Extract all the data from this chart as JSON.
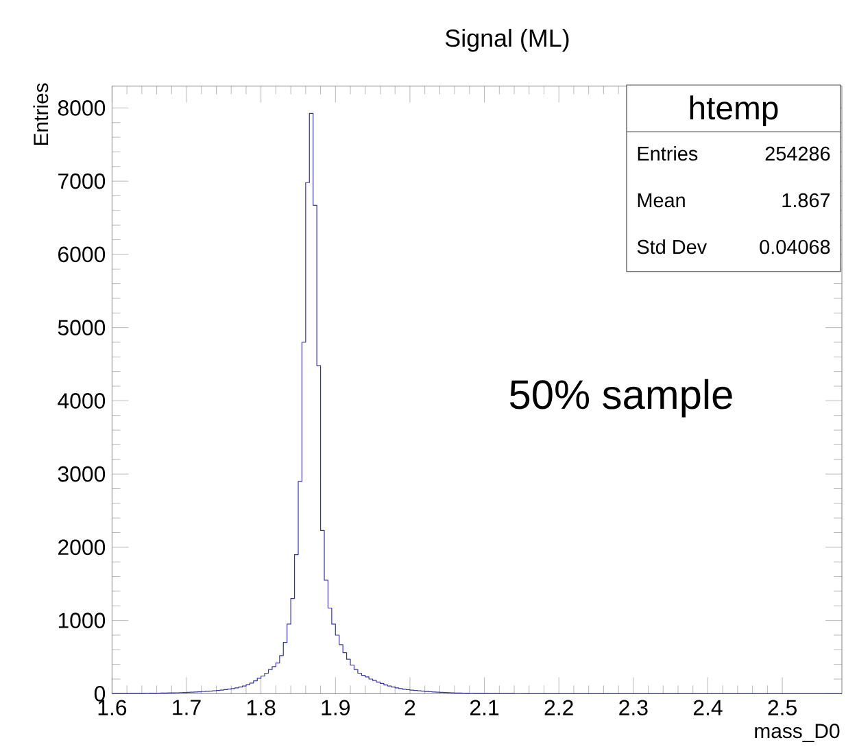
{
  "chart_data": {
    "type": "histogram",
    "title": "Signal (ML)",
    "xlabel": "mass_D0",
    "ylabel": "Entries",
    "color": "#35359c",
    "bins": [
      1.6,
      1.605,
      1.61,
      1.615,
      1.62,
      1.625,
      1.63,
      1.635,
      1.64,
      1.645,
      1.65,
      1.655,
      1.66,
      1.665,
      1.67,
      1.675,
      1.68,
      1.685,
      1.69,
      1.695,
      1.7,
      1.705,
      1.71,
      1.715,
      1.72,
      1.725,
      1.73,
      1.735,
      1.74,
      1.745,
      1.75,
      1.755,
      1.76,
      1.765,
      1.77,
      1.775,
      1.78,
      1.785,
      1.79,
      1.795,
      1.8,
      1.805,
      1.81,
      1.815,
      1.82,
      1.825,
      1.83,
      1.835,
      1.84,
      1.845,
      1.85,
      1.855,
      1.86,
      1.865,
      1.87,
      1.875,
      1.88,
      1.885,
      1.89,
      1.895,
      1.9,
      1.905,
      1.91,
      1.915,
      1.92,
      1.925,
      1.93,
      1.935,
      1.94,
      1.945,
      1.95,
      1.955,
      1.96,
      1.965,
      1.97,
      1.975,
      1.98,
      1.985,
      1.99,
      1.995,
      2.0,
      2.005,
      2.01,
      2.015,
      2.02,
      2.025,
      2.03,
      2.035,
      2.04,
      2.045,
      2.05,
      2.055,
      2.06,
      2.065,
      2.07,
      2.075,
      2.08,
      2.085,
      2.09,
      2.095,
      2.1,
      2.105,
      2.11,
      2.115,
      2.12,
      2.125,
      2.13,
      2.135,
      2.14,
      2.145,
      2.15,
      2.155,
      2.16,
      2.165,
      2.17,
      2.175,
      2.18,
      2.185,
      2.19,
      2.195,
      2.2,
      2.205,
      2.21,
      2.215,
      2.22,
      2.225,
      2.23,
      2.235,
      2.24,
      2.245,
      2.25,
      2.255,
      2.26,
      2.265,
      2.27,
      2.275,
      2.28,
      2.285,
      2.29,
      2.295,
      2.3,
      2.305,
      2.31,
      2.315,
      2.32,
      2.325,
      2.33,
      2.335,
      2.34,
      2.345,
      2.35,
      2.355,
      2.36,
      2.365,
      2.37,
      2.375,
      2.38,
      2.385,
      2.39,
      2.395,
      2.4,
      2.405,
      2.41,
      2.415,
      2.42,
      2.425,
      2.43,
      2.435,
      2.44,
      2.445,
      2.45,
      2.455,
      2.46,
      2.465,
      2.47,
      2.475,
      2.48,
      2.485,
      2.49,
      2.495,
      2.5,
      2.505,
      2.51,
      2.515,
      2.52,
      2.525,
      2.53,
      2.535,
      2.54,
      2.545,
      2.55,
      2.555,
      2.56,
      2.565,
      2.57,
      2.575,
      2.58
    ],
    "values": [
      2,
      2,
      3,
      3,
      3,
      4,
      4,
      5,
      5,
      6,
      7,
      7,
      8,
      9,
      10,
      11,
      12,
      13,
      15,
      17,
      19,
      21,
      23,
      26,
      29,
      32,
      36,
      40,
      45,
      50,
      56,
      63,
      71,
      80,
      92,
      105,
      122,
      145,
      175,
      210,
      240,
      280,
      330,
      370,
      420,
      520,
      700,
      950,
      1300,
      1900,
      2900,
      4800,
      6980,
      7925,
      6670,
      4480,
      2230,
      1550,
      1170,
      950,
      800,
      670,
      560,
      470,
      390,
      330,
      280,
      250,
      230,
      200,
      180,
      160,
      140,
      120,
      105,
      92,
      80,
      70,
      60,
      55,
      50,
      45,
      40,
      35,
      30,
      27,
      24,
      21,
      18,
      16,
      14,
      12,
      10,
      9,
      8,
      7,
      6,
      5,
      5,
      4,
      4,
      3,
      3,
      3,
      2,
      2,
      2,
      2,
      1,
      1,
      0,
      0,
      0,
      0,
      0,
      0,
      0,
      0,
      0,
      0,
      0,
      0,
      0,
      0,
      0,
      0,
      0,
      0,
      0,
      0,
      0,
      0,
      0,
      0,
      0,
      0,
      0,
      0,
      0,
      0,
      0,
      0,
      0,
      0,
      0,
      0,
      0,
      0,
      0,
      0,
      0,
      0,
      0,
      0,
      0,
      0,
      0,
      0,
      0,
      0,
      0,
      0,
      0,
      0,
      0,
      0,
      0,
      0,
      0,
      0,
      0,
      0,
      0,
      0,
      0,
      0,
      0,
      0,
      0,
      0,
      0,
      0,
      0,
      0,
      0,
      0,
      0,
      0,
      0,
      0,
      0,
      0,
      0,
      0,
      0,
      0
    ],
    "xlim": [
      1.6,
      2.58
    ],
    "xticks": [
      1.6,
      1.7,
      1.8,
      1.9,
      2,
      2.1,
      2.2,
      2.3,
      2.4,
      2.5
    ],
    "ylim": [
      0,
      8300
    ],
    "yticks": [
      0,
      1000,
      2000,
      3000,
      4000,
      5000,
      6000,
      7000,
      8000
    ],
    "grid": false,
    "annotations": [
      "50% sample",
      "htemp",
      "Entries",
      "254286",
      "Mean",
      "1.867",
      "Std Dev",
      "0.04068"
    ]
  }
}
